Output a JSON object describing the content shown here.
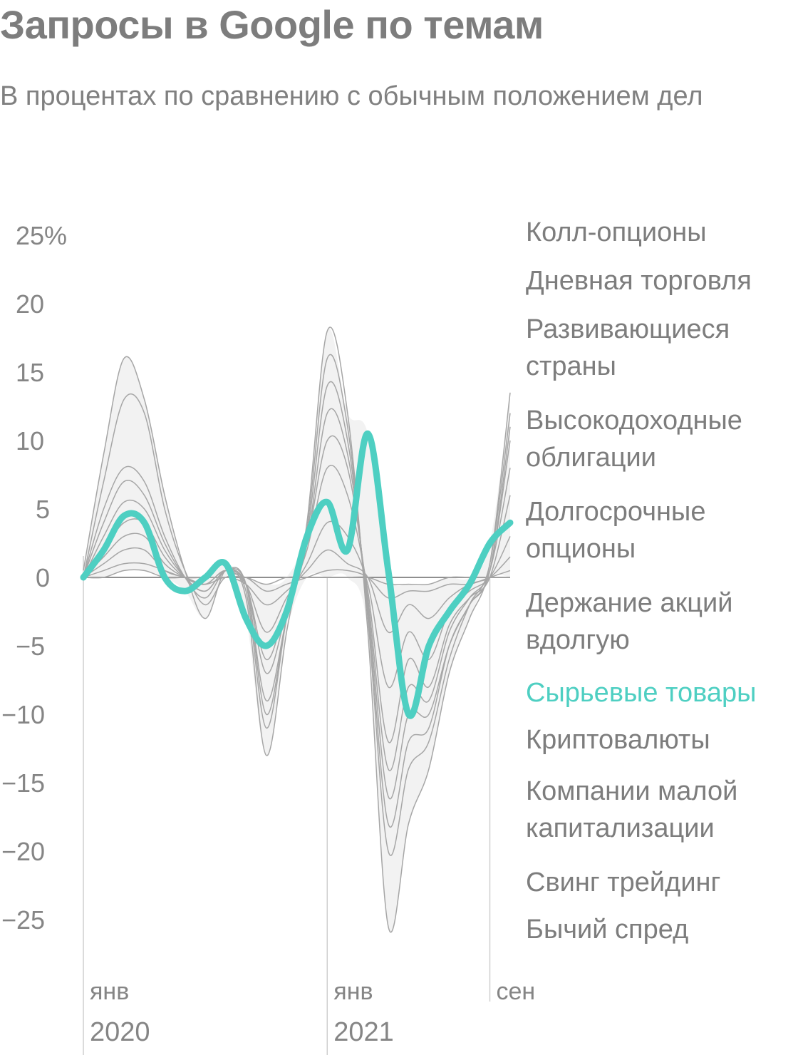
{
  "header": {
    "title": "Запросы в Google по темам",
    "subtitle": "В процентах по сравнению с обычным положением дел"
  },
  "colors": {
    "highlight": "#4ecfc2",
    "band_fill": "#f2f2f2",
    "line": "#a6a6a6",
    "text": "#7d7d7d"
  },
  "chart_data": {
    "type": "line",
    "title": "Запросы в Google по темам",
    "subtitle": "В процентах по сравнению с обычным положением дел",
    "ylim": [
      -25,
      25
    ],
    "ytick_labels": [
      "25%",
      "20",
      "15",
      "10",
      "5",
      "0",
      "−5",
      "−10",
      "−15",
      "−20",
      "−25"
    ],
    "ytick_values": [
      25,
      20,
      15,
      10,
      5,
      0,
      -5,
      -10,
      -15,
      -20,
      -25
    ],
    "xlim": [
      0,
      21
    ],
    "xtick_labels": [
      {
        "month": "янв",
        "year": "2020",
        "x": 0
      },
      {
        "month": "янв",
        "year": "2021",
        "x": 12
      },
      {
        "month": "сен",
        "year": "",
        "x": 20
      }
    ],
    "x": [
      0,
      1,
      2,
      3,
      4,
      5,
      6,
      7,
      8,
      9,
      10,
      11,
      12,
      13,
      14,
      15,
      16,
      17,
      18,
      19,
      20,
      21
    ],
    "highlight_series": "Сырьевые товары",
    "series": [
      {
        "name": "Колл-опционы",
        "values": [
          0.5,
          9,
          16,
          13,
          6,
          0.5,
          -3,
          0.5,
          -1.5,
          -13,
          -4,
          4,
          18,
          12,
          -4,
          -25.5,
          -18,
          -14,
          -7,
          -3,
          1,
          13.5
        ]
      },
      {
        "name": "Дневная торговля",
        "values": [
          0,
          7,
          13,
          12,
          5,
          0.5,
          -2,
          0,
          -1,
          -11,
          -3,
          3.5,
          16,
          11,
          -3,
          -20,
          -14,
          -12,
          -6,
          -2,
          1,
          12
        ]
      },
      {
        "name": "Развивающиеся страны",
        "values": [
          0,
          5,
          8,
          7,
          3,
          0,
          -1.5,
          0.5,
          -0.5,
          -10,
          -3,
          3,
          14,
          10,
          -2.5,
          -18,
          -12,
          -11,
          -5,
          -2,
          0.5,
          11
        ]
      },
      {
        "name": "Высокодоходные облигации",
        "values": [
          0,
          4,
          7,
          6,
          2.5,
          0,
          -1,
          0.5,
          -0.5,
          -9,
          -3,
          2.5,
          12,
          9,
          -2,
          -16,
          -10,
          -10,
          -5,
          -2,
          0.5,
          10
        ]
      },
      {
        "name": "Долгосрочные опционы",
        "values": [
          0,
          3,
          5.5,
          5,
          2,
          0,
          -1,
          0.5,
          -0.5,
          -7,
          -2.5,
          2.5,
          10,
          8,
          -1.5,
          -14,
          -8,
          -9,
          -4,
          -1.5,
          0.5,
          8
        ]
      },
      {
        "name": "Держание акций вдолгую",
        "values": [
          0,
          2,
          4,
          4,
          1.5,
          0,
          -0.5,
          0.5,
          -0.5,
          -6,
          -2,
          2,
          8,
          6,
          -1,
          -12,
          -6,
          -8,
          -3.5,
          -1.5,
          0,
          6
        ]
      },
      {
        "name": "Сырьевые товары",
        "values": [
          0,
          2,
          4.5,
          4,
          0,
          -1,
          0,
          1,
          -3,
          -5,
          -2.5,
          3,
          5.5,
          2,
          10.5,
          0.5,
          -10,
          -5,
          -2.5,
          -0.5,
          2.5,
          4
        ]
      },
      {
        "name": "Криптовалюты",
        "values": [
          0,
          1.5,
          3,
          3,
          1,
          0,
          -0.5,
          0.5,
          -0.5,
          -4,
          -1.5,
          1,
          4,
          3,
          -0.5,
          -8,
          -4,
          -6,
          -2.5,
          -1,
          0,
          3
        ]
      },
      {
        "name": "Компании малой капитализации",
        "values": [
          0,
          1,
          2,
          2,
          0.5,
          0,
          -0.5,
          0,
          -0.5,
          -2,
          -1,
          0.5,
          2,
          1,
          0,
          -4,
          -2,
          -3,
          -1.5,
          -0.5,
          0,
          1.5
        ]
      },
      {
        "name": "Свинг трейдинг",
        "values": [
          0,
          0.5,
          1,
          1,
          0.5,
          0,
          0,
          0,
          0,
          -1,
          -0.5,
          0,
          0.5,
          0.5,
          0,
          -1.5,
          -1,
          -1,
          -0.5,
          -0.5,
          0,
          0.5
        ]
      },
      {
        "name": "Бычий спред",
        "values": [
          0,
          0,
          0.5,
          0.5,
          0,
          0,
          0,
          0,
          0,
          -0.5,
          0,
          0,
          0,
          0,
          0,
          -0.5,
          -0.5,
          -0.5,
          0,
          0,
          0,
          0
        ]
      }
    ]
  }
}
